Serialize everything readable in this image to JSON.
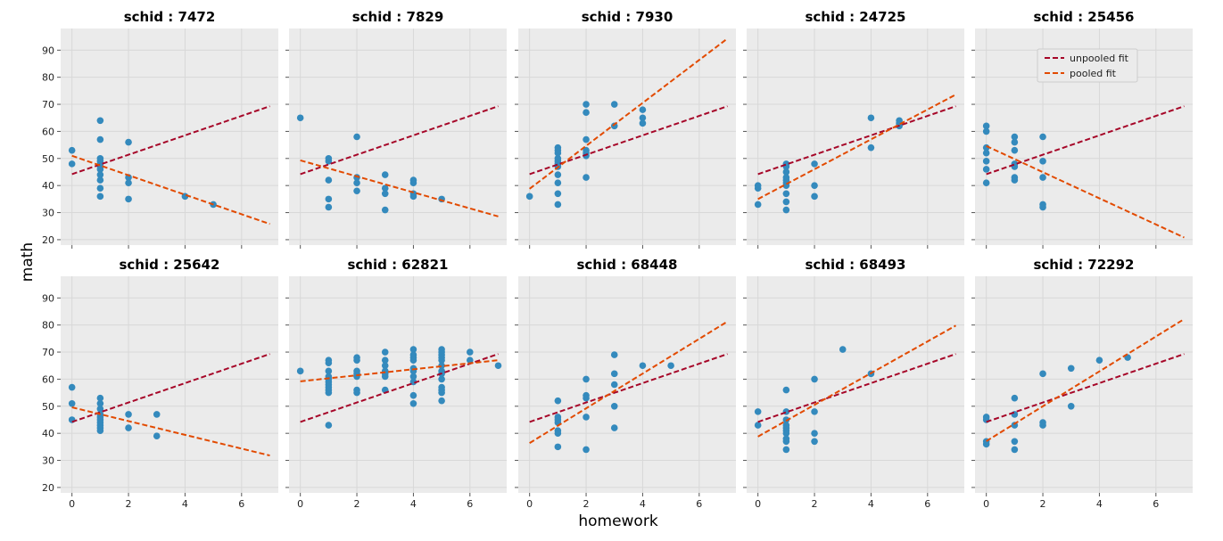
{
  "figure": {
    "ylabel": "math",
    "xlabel": "homework",
    "legend": {
      "placement": "top-right of panel schid : 25456",
      "unpooled_label": "unpooled fit",
      "pooled_label": "pooled fit"
    },
    "colors": {
      "panel_bg": "#ebebeb",
      "grid": "#d8d8d8",
      "points": "#348abd",
      "unpooled": "#a60628",
      "pooled": "#e24a00"
    }
  },
  "chart_data": [
    {
      "type": "scatter",
      "title": "schid : 7472",
      "xlim": [
        -0.4,
        7.3
      ],
      "ylim": [
        18,
        98
      ],
      "xticks": [
        0,
        2,
        4,
        6
      ],
      "yticks": [
        20,
        30,
        40,
        50,
        60,
        70,
        80,
        90
      ],
      "points": [
        [
          0,
          53
        ],
        [
          0,
          48
        ],
        [
          1,
          64
        ],
        [
          1,
          57
        ],
        [
          1,
          50
        ],
        [
          1,
          49
        ],
        [
          1,
          48
        ],
        [
          1,
          47
        ],
        [
          1,
          46
        ],
        [
          1,
          44
        ],
        [
          1,
          42
        ],
        [
          1,
          39
        ],
        [
          1,
          36
        ],
        [
          2,
          56
        ],
        [
          2,
          43
        ],
        [
          2,
          41
        ],
        [
          2,
          35
        ],
        [
          4,
          36
        ],
        [
          5,
          33
        ]
      ],
      "unpooled_fit": [
        [
          0,
          44.2
        ],
        [
          7,
          69.3
        ]
      ],
      "pooled_fit": [
        [
          0,
          51
        ],
        [
          7,
          25.8
        ]
      ]
    },
    {
      "type": "scatter",
      "title": "schid : 7829",
      "xlim": [
        -0.4,
        7.3
      ],
      "ylim": [
        18,
        98
      ],
      "xticks": [
        0,
        2,
        4,
        6
      ],
      "yticks": [
        20,
        30,
        40,
        50,
        60,
        70,
        80,
        90
      ],
      "points": [
        [
          0,
          65
        ],
        [
          1,
          50
        ],
        [
          1,
          49
        ],
        [
          1,
          42
        ],
        [
          1,
          35
        ],
        [
          1,
          32
        ],
        [
          2,
          58
        ],
        [
          2,
          43
        ],
        [
          2,
          41
        ],
        [
          2,
          38
        ],
        [
          3,
          44
        ],
        [
          3,
          39
        ],
        [
          3,
          37
        ],
        [
          3,
          31
        ],
        [
          4,
          42
        ],
        [
          4,
          41
        ],
        [
          4,
          37
        ],
        [
          4,
          36
        ],
        [
          5,
          35
        ]
      ],
      "unpooled_fit": [
        [
          0,
          44.2
        ],
        [
          7,
          69.3
        ]
      ],
      "pooled_fit": [
        [
          0,
          49.3
        ],
        [
          7,
          28.6
        ]
      ]
    },
    {
      "type": "scatter",
      "title": "schid : 7930",
      "xlim": [
        -0.4,
        7.3
      ],
      "ylim": [
        18,
        98
      ],
      "xticks": [
        0,
        2,
        4,
        6
      ],
      "yticks": [
        20,
        30,
        40,
        50,
        60,
        70,
        80,
        90
      ],
      "points": [
        [
          0,
          36
        ],
        [
          1,
          54
        ],
        [
          1,
          53
        ],
        [
          1,
          52
        ],
        [
          1,
          50
        ],
        [
          1,
          49
        ],
        [
          1,
          48
        ],
        [
          1,
          47
        ],
        [
          1,
          44
        ],
        [
          1,
          41
        ],
        [
          1,
          37
        ],
        [
          1,
          33
        ],
        [
          2,
          70
        ],
        [
          2,
          67
        ],
        [
          2,
          57
        ],
        [
          2,
          53
        ],
        [
          2,
          52
        ],
        [
          2,
          51
        ],
        [
          2,
          43
        ],
        [
          3,
          70
        ],
        [
          3,
          62
        ],
        [
          4,
          68
        ],
        [
          4,
          65
        ],
        [
          4,
          63
        ]
      ],
      "unpooled_fit": [
        [
          0,
          44.2
        ],
        [
          7,
          69.3
        ]
      ],
      "pooled_fit": [
        [
          0,
          38.8
        ],
        [
          7,
          94.3
        ]
      ]
    },
    {
      "type": "scatter",
      "title": "schid : 24725",
      "xlim": [
        -0.4,
        7.3
      ],
      "ylim": [
        18,
        98
      ],
      "xticks": [
        0,
        2,
        4,
        6
      ],
      "yticks": [
        20,
        30,
        40,
        50,
        60,
        70,
        80,
        90
      ],
      "points": [
        [
          0,
          40
        ],
        [
          0,
          39
        ],
        [
          0,
          33
        ],
        [
          1,
          48
        ],
        [
          1,
          47
        ],
        [
          1,
          45
        ],
        [
          1,
          43
        ],
        [
          1,
          42
        ],
        [
          1,
          41
        ],
        [
          1,
          40
        ],
        [
          1,
          37
        ],
        [
          1,
          34
        ],
        [
          1,
          31
        ],
        [
          2,
          48
        ],
        [
          2,
          40
        ],
        [
          2,
          36
        ],
        [
          4,
          65
        ],
        [
          4,
          54
        ],
        [
          5,
          64
        ],
        [
          5,
          63
        ],
        [
          5,
          62
        ]
      ],
      "unpooled_fit": [
        [
          0,
          44.2
        ],
        [
          7,
          69.3
        ]
      ],
      "pooled_fit": [
        [
          0,
          35
        ],
        [
          7,
          73.6
        ]
      ]
    },
    {
      "type": "scatter",
      "title": "schid : 25456",
      "xlim": [
        -0.4,
        7.3
      ],
      "ylim": [
        18,
        98
      ],
      "xticks": [
        0,
        2,
        4,
        6
      ],
      "yticks": [
        20,
        30,
        40,
        50,
        60,
        70,
        80,
        90
      ],
      "points": [
        [
          0,
          62
        ],
        [
          0,
          60
        ],
        [
          0,
          54
        ],
        [
          0,
          52
        ],
        [
          0,
          49
        ],
        [
          0,
          46
        ],
        [
          0,
          41
        ],
        [
          1,
          58
        ],
        [
          1,
          56
        ],
        [
          1,
          53
        ],
        [
          1,
          48
        ],
        [
          1,
          47
        ],
        [
          1,
          43
        ],
        [
          1,
          42
        ],
        [
          2,
          58
        ],
        [
          2,
          49
        ],
        [
          2,
          43
        ],
        [
          2,
          33
        ],
        [
          2,
          32
        ]
      ],
      "unpooled_fit": [
        [
          0,
          44.2
        ],
        [
          7,
          69.3
        ]
      ],
      "pooled_fit": [
        [
          0,
          54.6
        ],
        [
          7,
          20.8
        ]
      ]
    },
    {
      "type": "scatter",
      "title": "schid : 25642",
      "xlim": [
        -0.4,
        7.3
      ],
      "ylim": [
        18,
        98
      ],
      "xticks": [
        0,
        2,
        4,
        6
      ],
      "yticks": [
        20,
        30,
        40,
        50,
        60,
        70,
        80,
        90
      ],
      "points": [
        [
          0,
          57
        ],
        [
          0,
          51
        ],
        [
          0,
          45
        ],
        [
          1,
          53
        ],
        [
          1,
          51
        ],
        [
          1,
          49
        ],
        [
          1,
          47
        ],
        [
          1,
          46
        ],
        [
          1,
          45
        ],
        [
          1,
          44
        ],
        [
          1,
          43
        ],
        [
          1,
          42
        ],
        [
          1,
          41
        ],
        [
          2,
          47
        ],
        [
          2,
          42
        ],
        [
          3,
          47
        ],
        [
          3,
          39
        ]
      ],
      "unpooled_fit": [
        [
          0,
          44.2
        ],
        [
          7,
          69.3
        ]
      ],
      "pooled_fit": [
        [
          0,
          49.6
        ],
        [
          7,
          31.8
        ]
      ]
    },
    {
      "type": "scatter",
      "title": "schid : 62821",
      "xlim": [
        -0.4,
        7.3
      ],
      "ylim": [
        18,
        98
      ],
      "xticks": [
        0,
        2,
        4,
        6
      ],
      "yticks": [
        20,
        30,
        40,
        50,
        60,
        70,
        80,
        90
      ],
      "points": [
        [
          0,
          63
        ],
        [
          1,
          67
        ],
        [
          1,
          66
        ],
        [
          1,
          63
        ],
        [
          1,
          61
        ],
        [
          1,
          60
        ],
        [
          1,
          59
        ],
        [
          1,
          58
        ],
        [
          1,
          57
        ],
        [
          1,
          56
        ],
        [
          1,
          55
        ],
        [
          1,
          43
        ],
        [
          2,
          68
        ],
        [
          2,
          67
        ],
        [
          2,
          63
        ],
        [
          2,
          62
        ],
        [
          2,
          61
        ],
        [
          2,
          56
        ],
        [
          2,
          55
        ],
        [
          3,
          70
        ],
        [
          3,
          67
        ],
        [
          3,
          65
        ],
        [
          3,
          63
        ],
        [
          3,
          62
        ],
        [
          3,
          61
        ],
        [
          3,
          56
        ],
        [
          4,
          71
        ],
        [
          4,
          69
        ],
        [
          4,
          68
        ],
        [
          4,
          67
        ],
        [
          4,
          64
        ],
        [
          4,
          63
        ],
        [
          4,
          61
        ],
        [
          4,
          59
        ],
        [
          4,
          54
        ],
        [
          4,
          51
        ],
        [
          5,
          71
        ],
        [
          5,
          70
        ],
        [
          5,
          69
        ],
        [
          5,
          68
        ],
        [
          5,
          67
        ],
        [
          5,
          65
        ],
        [
          5,
          63
        ],
        [
          5,
          62
        ],
        [
          5,
          60
        ],
        [
          5,
          57
        ],
        [
          5,
          56
        ],
        [
          5,
          55
        ],
        [
          5,
          52
        ],
        [
          6,
          70
        ],
        [
          6,
          67
        ],
        [
          7,
          65
        ]
      ],
      "unpooled_fit": [
        [
          0,
          44.2
        ],
        [
          7,
          69.3
        ]
      ],
      "pooled_fit": [
        [
          0,
          59.2
        ],
        [
          7,
          67
        ]
      ]
    },
    {
      "type": "scatter",
      "title": "schid : 68448",
      "xlim": [
        -0.4,
        7.3
      ],
      "ylim": [
        18,
        98
      ],
      "xticks": [
        0,
        2,
        4,
        6
      ],
      "yticks": [
        20,
        30,
        40,
        50,
        60,
        70,
        80,
        90
      ],
      "points": [
        [
          1,
          52
        ],
        [
          1,
          46
        ],
        [
          1,
          45
        ],
        [
          1,
          44
        ],
        [
          1,
          41
        ],
        [
          1,
          40
        ],
        [
          1,
          35
        ],
        [
          2,
          60
        ],
        [
          2,
          54
        ],
        [
          2,
          53
        ],
        [
          2,
          46
        ],
        [
          2,
          34
        ],
        [
          3,
          69
        ],
        [
          3,
          62
        ],
        [
          3,
          58
        ],
        [
          3,
          50
        ],
        [
          3,
          42
        ],
        [
          4,
          65
        ],
        [
          5,
          65
        ]
      ],
      "unpooled_fit": [
        [
          0,
          44.2
        ],
        [
          7,
          69.3
        ]
      ],
      "pooled_fit": [
        [
          0,
          36.4
        ],
        [
          7,
          81.3
        ]
      ]
    },
    {
      "type": "scatter",
      "title": "schid : 68493",
      "xlim": [
        -0.4,
        7.3
      ],
      "ylim": [
        18,
        98
      ],
      "xticks": [
        0,
        2,
        4,
        6
      ],
      "yticks": [
        20,
        30,
        40,
        50,
        60,
        70,
        80,
        90
      ],
      "points": [
        [
          0,
          48
        ],
        [
          0,
          43
        ],
        [
          1,
          56
        ],
        [
          1,
          48
        ],
        [
          1,
          45
        ],
        [
          1,
          43
        ],
        [
          1,
          42
        ],
        [
          1,
          41
        ],
        [
          1,
          40
        ],
        [
          1,
          38
        ],
        [
          1,
          37
        ],
        [
          1,
          34
        ],
        [
          2,
          60
        ],
        [
          2,
          48
        ],
        [
          2,
          40
        ],
        [
          2,
          37
        ],
        [
          3,
          71
        ],
        [
          4,
          62
        ]
      ],
      "unpooled_fit": [
        [
          0,
          44.2
        ],
        [
          7,
          69.3
        ]
      ],
      "pooled_fit": [
        [
          0,
          38.8
        ],
        [
          7,
          79.8
        ]
      ]
    },
    {
      "type": "scatter",
      "title": "schid : 72292",
      "xlim": [
        -0.4,
        7.3
      ],
      "ylim": [
        18,
        98
      ],
      "xticks": [
        0,
        2,
        4,
        6
      ],
      "yticks": [
        20,
        30,
        40,
        50,
        60,
        70,
        80,
        90
      ],
      "points": [
        [
          0,
          46
        ],
        [
          0,
          45
        ],
        [
          0,
          37
        ],
        [
          0,
          36
        ],
        [
          1,
          53
        ],
        [
          1,
          47
        ],
        [
          1,
          43
        ],
        [
          1,
          37
        ],
        [
          1,
          34
        ],
        [
          2,
          62
        ],
        [
          2,
          44
        ],
        [
          2,
          43
        ],
        [
          3,
          64
        ],
        [
          3,
          50
        ],
        [
          4,
          67
        ],
        [
          5,
          68
        ]
      ],
      "unpooled_fit": [
        [
          0,
          44.2
        ],
        [
          7,
          69.3
        ]
      ],
      "pooled_fit": [
        [
          0,
          37.1
        ],
        [
          7,
          82.2
        ]
      ]
    }
  ]
}
